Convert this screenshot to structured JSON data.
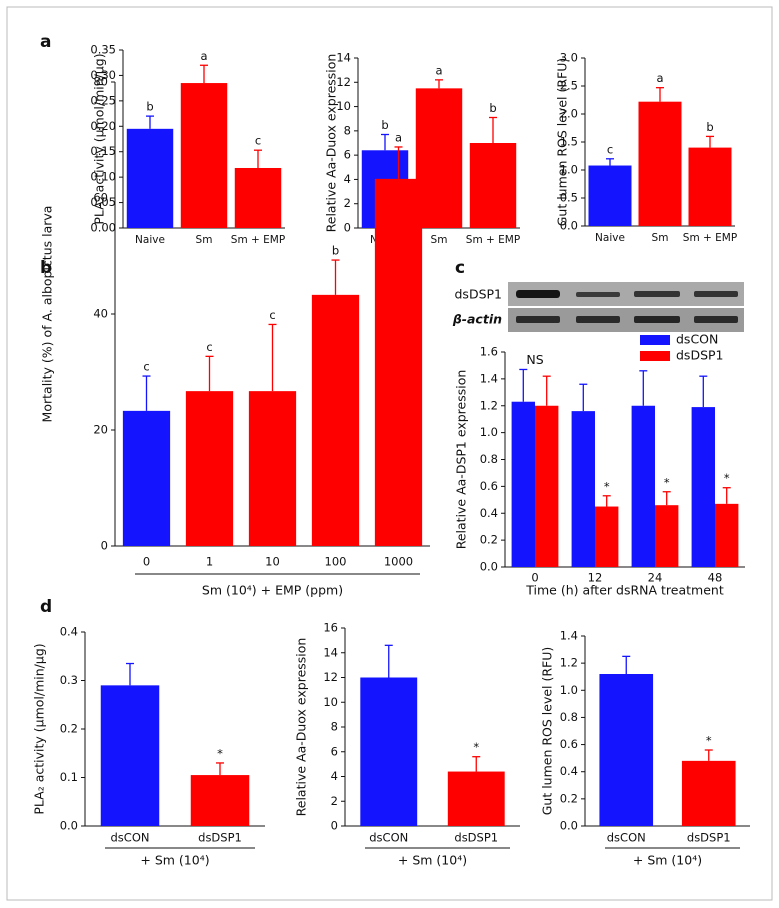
{
  "panel_labels": [
    "a",
    "b",
    "c",
    "d"
  ],
  "gel": {
    "labels": [
      "dsDSP1",
      "β-actin"
    ]
  },
  "chart_data": [
    {
      "type": "bar",
      "ylabel": "PLA₂ activity (μmol/min/μg)",
      "categories": [
        "Naive",
        "Sm",
        "Sm + EMP"
      ],
      "values": [
        0.195,
        0.285,
        0.118
      ],
      "errors": [
        0.025,
        0.035,
        0.035
      ],
      "annotations": [
        "b",
        "a",
        "c"
      ],
      "colors": [
        "#1414ff",
        "#ff0000",
        "#ff0000"
      ],
      "ylim": [
        0,
        0.35
      ],
      "yticks": [
        {
          "value": 0,
          "label": "0.00"
        },
        0.05,
        {
          "value": 0.1,
          "label": "0.10"
        },
        0.15,
        {
          "value": 0.2,
          "label": "0.20"
        },
        0.25,
        {
          "value": 0.3,
          "label": "0.30"
        },
        0.35
      ]
    },
    {
      "type": "bar",
      "ylabel": "Relative Aa-Duox expression",
      "categories": [
        "Naive",
        "Sm",
        "Sm + EMP"
      ],
      "values": [
        6.4,
        11.5,
        7.0
      ],
      "errors": [
        1.3,
        0.7,
        2.1
      ],
      "annotations": [
        "b",
        "a",
        "b"
      ],
      "colors": [
        "#1414ff",
        "#ff0000",
        "#ff0000"
      ],
      "ylim": [
        0,
        14
      ],
      "yticks": [
        0,
        2,
        4,
        6,
        8,
        10,
        12,
        14
      ]
    },
    {
      "type": "bar",
      "ylabel": "Gut lumen ROS level (RFU)",
      "categories": [
        "Naive",
        "Sm",
        "Sm + EMP"
      ],
      "values": [
        1.08,
        2.22,
        1.4
      ],
      "errors": [
        0.12,
        0.25,
        0.2
      ],
      "annotations": [
        "c",
        "a",
        "b"
      ],
      "colors": [
        "#1414ff",
        "#ff0000",
        "#ff0000"
      ],
      "ylim": [
        0,
        3
      ],
      "yticks": [
        {
          "value": 0,
          "label": "0.0"
        },
        0.5,
        {
          "value": 1,
          "label": "1.0"
        },
        1.5,
        {
          "value": 2,
          "label": "2.0"
        },
        2.5,
        {
          "value": 3,
          "label": "3.0"
        }
      ]
    },
    {
      "type": "bar",
      "ylabel": "Mortality (%) of A. albopictus larva",
      "xlabel": "Sm (10⁴) + EMP (ppm)",
      "categories": [
        "0",
        "1",
        "10",
        "100",
        "1000"
      ],
      "values": [
        23.3,
        26.7,
        26.7,
        43.3,
        63.3
      ],
      "errors": [
        6,
        6,
        11.5,
        6,
        5.5
      ],
      "annotations": [
        "c",
        "c",
        "c",
        "b",
        "a"
      ],
      "colors": [
        "#1414ff",
        "#ff0000",
        "#ff0000",
        "#ff0000",
        "#ff0000"
      ],
      "ylim": [
        0,
        80
      ],
      "yticks": [
        0,
        20,
        40,
        60,
        80
      ]
    },
    {
      "type": "grouped_bar",
      "ylabel": "Relative Aa-DSP1 expression",
      "xlabel": "Time (h) after dsRNA treatment",
      "categories": [
        "0",
        "12",
        "24",
        "48"
      ],
      "group_annotations": [
        "NS",
        null,
        null,
        null
      ],
      "series": [
        {
          "name": "dsCON",
          "color": "#1414ff",
          "values": [
            1.23,
            1.16,
            1.2,
            1.19
          ],
          "errors": [
            0.24,
            0.2,
            0.26,
            0.23
          ],
          "annotations": [
            null,
            null,
            null,
            null
          ]
        },
        {
          "name": "dsDSP1",
          "color": "#ff0000",
          "values": [
            1.2,
            0.45,
            0.46,
            0.47
          ],
          "errors": [
            0.22,
            0.08,
            0.1,
            0.12
          ],
          "annotations": [
            null,
            "*",
            "*",
            "*"
          ]
        }
      ],
      "ylim": [
        0,
        1.6
      ],
      "yticks": [
        {
          "value": 0,
          "label": "0.0"
        },
        0.2,
        0.4,
        0.6,
        0.8,
        {
          "value": 1,
          "label": "1.0"
        },
        1.2,
        1.4,
        1.6
      ]
    },
    {
      "type": "bar",
      "ylabel": "PLA₂ activity (μmol/min/μg)",
      "xlabel": "+ Sm (10⁴)",
      "categories": [
        "dsCON",
        "dsDSP1"
      ],
      "values": [
        0.29,
        0.105
      ],
      "errors": [
        0.045,
        0.025
      ],
      "annotations": [
        null,
        "*"
      ],
      "colors": [
        "#1414ff",
        "#ff0000"
      ],
      "ylim": [
        0,
        0.4
      ],
      "yticks": [
        {
          "value": 0,
          "label": "0.0"
        },
        0.1,
        0.2,
        0.3,
        0.4
      ]
    },
    {
      "type": "bar",
      "ylabel": "Relative Aa-Duox expression",
      "xlabel": "+ Sm (10⁴)",
      "categories": [
        "dsCON",
        "dsDSP1"
      ],
      "values": [
        12.0,
        4.4
      ],
      "errors": [
        2.6,
        1.2
      ],
      "annotations": [
        null,
        "*"
      ],
      "colors": [
        "#1414ff",
        "#ff0000"
      ],
      "ylim": [
        0,
        16
      ],
      "yticks": [
        0,
        2,
        4,
        6,
        8,
        10,
        12,
        14,
        16
      ]
    },
    {
      "type": "bar",
      "ylabel": "Gut lumen ROS level (RFU)",
      "xlabel": "+ Sm (10⁴)",
      "categories": [
        "dsCON",
        "dsDSP1"
      ],
      "values": [
        1.12,
        0.48
      ],
      "errors": [
        0.13,
        0.08
      ],
      "annotations": [
        null,
        "*"
      ],
      "colors": [
        "#1414ff",
        "#ff0000"
      ],
      "ylim": [
        0,
        1.4
      ],
      "yticks": [
        {
          "value": 0,
          "label": "0.0"
        },
        0.2,
        0.4,
        0.6,
        0.8,
        {
          "value": 1,
          "label": "1.0"
        },
        1.2,
        1.4
      ]
    }
  ]
}
